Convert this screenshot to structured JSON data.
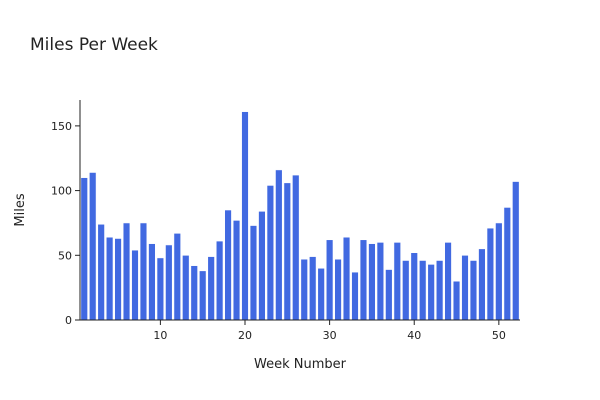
{
  "chart_data": {
    "type": "bar",
    "title": "Miles Per Week",
    "xlabel": "Week Number",
    "ylabel": "Miles",
    "x_ticks": [
      10,
      20,
      30,
      40,
      50
    ],
    "y_ticks": [
      0,
      50,
      100,
      150
    ],
    "xlim": [
      0.5,
      52.5
    ],
    "ylim": [
      0,
      170
    ],
    "bar_color": "#4169e1",
    "bar_edge_color": "#ffffff",
    "grid": false,
    "x": [
      1,
      2,
      3,
      4,
      5,
      6,
      7,
      8,
      9,
      10,
      11,
      12,
      13,
      14,
      15,
      16,
      17,
      18,
      19,
      20,
      21,
      22,
      23,
      24,
      25,
      26,
      27,
      28,
      29,
      30,
      31,
      32,
      33,
      34,
      35,
      36,
      37,
      38,
      39,
      40,
      41,
      42,
      43,
      44,
      45,
      46,
      47,
      48,
      49,
      50,
      51,
      52
    ],
    "values": [
      110,
      114,
      74,
      64,
      63,
      75,
      54,
      75,
      59,
      48,
      58,
      67,
      50,
      42,
      38,
      49,
      61,
      85,
      77,
      161,
      73,
      84,
      104,
      116,
      106,
      112,
      47,
      49,
      40,
      62,
      47,
      64,
      37,
      62,
      59,
      60,
      39,
      60,
      46,
      52,
      46,
      43,
      46,
      60,
      30,
      50,
      46,
      55,
      71,
      75,
      87,
      107
    ]
  }
}
